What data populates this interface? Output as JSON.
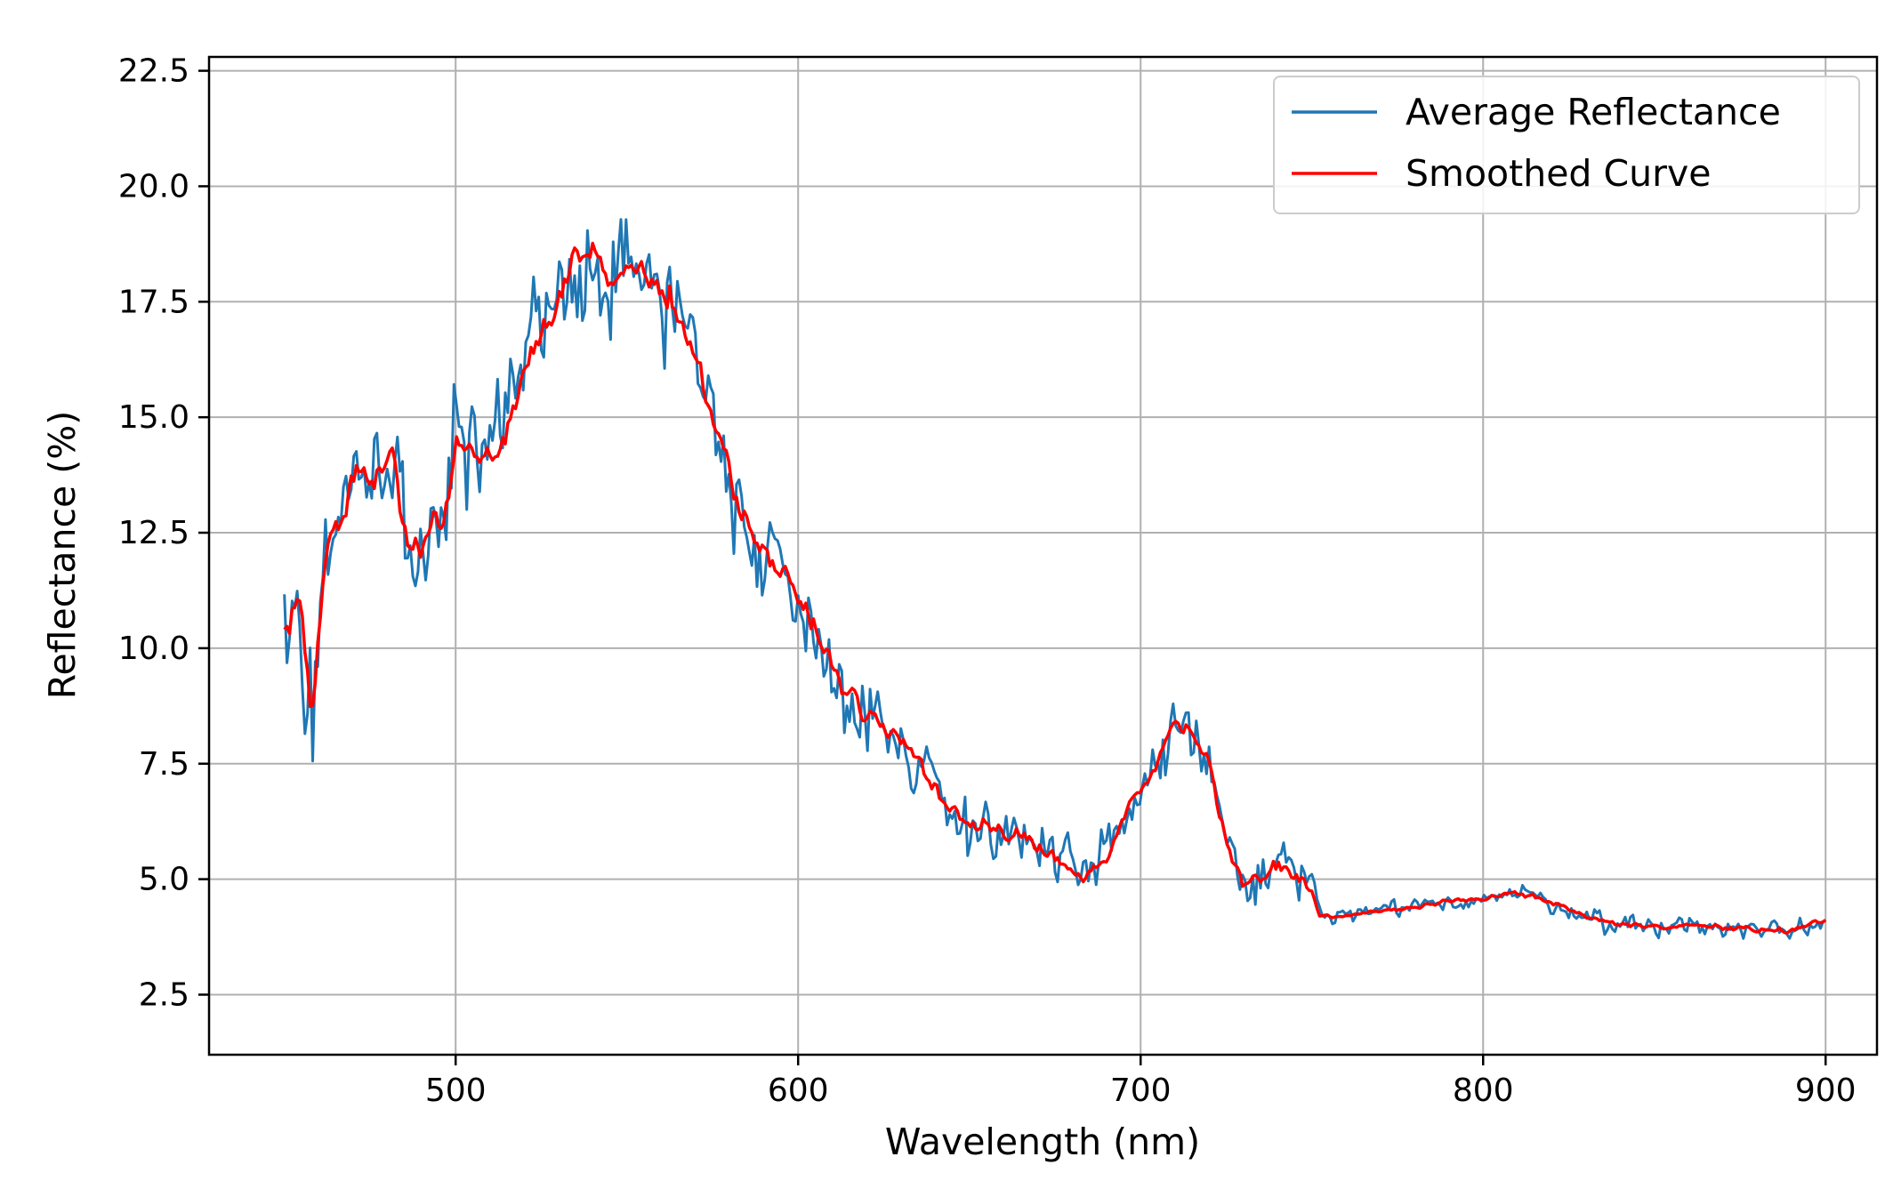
{
  "chart_data": {
    "type": "line",
    "title": "",
    "xlabel": "Wavelength (nm)",
    "ylabel": "Reflectance (%)",
    "xlim": [
      428,
      915
    ],
    "ylim": [
      1.2,
      22.8
    ],
    "x_ticks": [
      500,
      600,
      700,
      800,
      900
    ],
    "x_tick_labels": [
      "500",
      "600",
      "700",
      "800",
      "900"
    ],
    "y_ticks": [
      2.5,
      5.0,
      7.5,
      10.0,
      12.5,
      15.0,
      17.5,
      20.0,
      22.5
    ],
    "y_tick_labels": [
      "2.5",
      "5.0",
      "7.5",
      "10.0",
      "12.5",
      "15.0",
      "17.5",
      "20.0",
      "22.5"
    ],
    "grid": true,
    "legend": {
      "position": "top-right"
    },
    "x_range": [
      450,
      900
    ],
    "x_step": 0.75,
    "series": [
      {
        "name": "Average Reflectance",
        "color": "#1f77b4",
        "style": "noisy",
        "anchors": [
          [
            450,
            10.5
          ],
          [
            455,
            10.8
          ],
          [
            458,
            8.4
          ],
          [
            462,
            12.2
          ],
          [
            467,
            13.0
          ],
          [
            472,
            13.8
          ],
          [
            478,
            13.6
          ],
          [
            482,
            14.4
          ],
          [
            486,
            12.0
          ],
          [
            490,
            12.2
          ],
          [
            496,
            12.8
          ],
          [
            500,
            14.2
          ],
          [
            505,
            14.4
          ],
          [
            510,
            14.2
          ],
          [
            515,
            14.8
          ],
          [
            520,
            16.0
          ],
          [
            525,
            16.8
          ],
          [
            530,
            17.6
          ],
          [
            535,
            18.5
          ],
          [
            540,
            18.4
          ],
          [
            545,
            17.8
          ],
          [
            550,
            18.3
          ],
          [
            555,
            18.0
          ],
          [
            560,
            17.8
          ],
          [
            565,
            17.5
          ],
          [
            570,
            16.2
          ],
          [
            575,
            15.2
          ],
          [
            580,
            13.8
          ],
          [
            585,
            12.6
          ],
          [
            590,
            12.2
          ],
          [
            595,
            11.6
          ],
          [
            600,
            11.0
          ],
          [
            605,
            10.5
          ],
          [
            610,
            9.6
          ],
          [
            615,
            9.0
          ],
          [
            620,
            8.6
          ],
          [
            625,
            8.2
          ],
          [
            630,
            8.0
          ],
          [
            635,
            7.6
          ],
          [
            640,
            7.0
          ],
          [
            645,
            6.4
          ],
          [
            650,
            6.2
          ],
          [
            655,
            6.3
          ],
          [
            660,
            6.0
          ],
          [
            665,
            5.9
          ],
          [
            670,
            5.7
          ],
          [
            675,
            5.4
          ],
          [
            680,
            5.1
          ],
          [
            685,
            5.0
          ],
          [
            690,
            5.5
          ],
          [
            695,
            6.3
          ],
          [
            700,
            7.0
          ],
          [
            705,
            7.5
          ],
          [
            710,
            8.4
          ],
          [
            715,
            8.2
          ],
          [
            720,
            7.4
          ],
          [
            725,
            5.8
          ],
          [
            730,
            4.8
          ],
          [
            735,
            5.0
          ],
          [
            740,
            5.3
          ],
          [
            745,
            5.1
          ],
          [
            750,
            4.9
          ],
          [
            752,
            4.2
          ],
          [
            760,
            4.2
          ],
          [
            770,
            4.3
          ],
          [
            780,
            4.4
          ],
          [
            790,
            4.5
          ],
          [
            800,
            4.6
          ],
          [
            810,
            4.7
          ],
          [
            820,
            4.5
          ],
          [
            830,
            4.2
          ],
          [
            840,
            4.0
          ],
          [
            850,
            4.0
          ],
          [
            860,
            4.0
          ],
          [
            870,
            3.95
          ],
          [
            880,
            3.9
          ],
          [
            890,
            3.9
          ],
          [
            900,
            4.1
          ]
        ],
        "noise": [
          [
            450,
            2.6
          ],
          [
            500,
            2.6
          ],
          [
            575,
            2.2
          ],
          [
            640,
            1.4
          ],
          [
            700,
            1.2
          ],
          [
            725,
            1.4
          ],
          [
            750,
            1.2
          ],
          [
            752,
            0.35
          ],
          [
            900,
            0.5
          ]
        ]
      },
      {
        "name": "Smoothed Curve",
        "color": "#ff0000",
        "style": "smooth",
        "anchors": [
          [
            450,
            10.5
          ],
          [
            455,
            10.8
          ],
          [
            458,
            8.4
          ],
          [
            462,
            12.2
          ],
          [
            467,
            13.0
          ],
          [
            472,
            13.8
          ],
          [
            478,
            13.6
          ],
          [
            482,
            14.4
          ],
          [
            486,
            12.0
          ],
          [
            490,
            12.2
          ],
          [
            496,
            12.8
          ],
          [
            500,
            14.2
          ],
          [
            505,
            14.4
          ],
          [
            510,
            14.2
          ],
          [
            515,
            14.8
          ],
          [
            520,
            16.0
          ],
          [
            525,
            16.8
          ],
          [
            530,
            17.6
          ],
          [
            535,
            18.5
          ],
          [
            540,
            18.4
          ],
          [
            545,
            17.8
          ],
          [
            550,
            18.3
          ],
          [
            555,
            18.0
          ],
          [
            560,
            17.8
          ],
          [
            565,
            17.5
          ],
          [
            570,
            16.2
          ],
          [
            575,
            15.2
          ],
          [
            580,
            13.8
          ],
          [
            585,
            12.6
          ],
          [
            590,
            12.2
          ],
          [
            595,
            11.6
          ],
          [
            600,
            11.0
          ],
          [
            605,
            10.5
          ],
          [
            610,
            9.6
          ],
          [
            615,
            9.0
          ],
          [
            620,
            8.6
          ],
          [
            625,
            8.2
          ],
          [
            630,
            8.0
          ],
          [
            635,
            7.6
          ],
          [
            640,
            7.0
          ],
          [
            645,
            6.4
          ],
          [
            650,
            6.2
          ],
          [
            655,
            6.3
          ],
          [
            660,
            6.0
          ],
          [
            665,
            5.9
          ],
          [
            670,
            5.7
          ],
          [
            675,
            5.4
          ],
          [
            680,
            5.1
          ],
          [
            685,
            5.0
          ],
          [
            690,
            5.5
          ],
          [
            695,
            6.3
          ],
          [
            700,
            7.0
          ],
          [
            705,
            7.5
          ],
          [
            710,
            8.4
          ],
          [
            715,
            8.2
          ],
          [
            720,
            7.4
          ],
          [
            725,
            5.8
          ],
          [
            730,
            4.8
          ],
          [
            735,
            5.0
          ],
          [
            740,
            5.3
          ],
          [
            745,
            5.1
          ],
          [
            750,
            4.9
          ],
          [
            752,
            4.2
          ],
          [
            760,
            4.2
          ],
          [
            770,
            4.3
          ],
          [
            780,
            4.4
          ],
          [
            790,
            4.5
          ],
          [
            800,
            4.6
          ],
          [
            810,
            4.7
          ],
          [
            820,
            4.5
          ],
          [
            830,
            4.2
          ],
          [
            840,
            4.0
          ],
          [
            850,
            4.0
          ],
          [
            860,
            4.0
          ],
          [
            870,
            3.95
          ],
          [
            880,
            3.9
          ],
          [
            890,
            3.9
          ],
          [
            900,
            4.1
          ]
        ],
        "noise": [
          [
            450,
            1.3
          ],
          [
            500,
            1.2
          ],
          [
            575,
            0.9
          ],
          [
            640,
            0.55
          ],
          [
            700,
            0.45
          ],
          [
            725,
            0.6
          ],
          [
            750,
            0.45
          ],
          [
            752,
            0.12
          ],
          [
            900,
            0.18
          ]
        ]
      }
    ]
  }
}
